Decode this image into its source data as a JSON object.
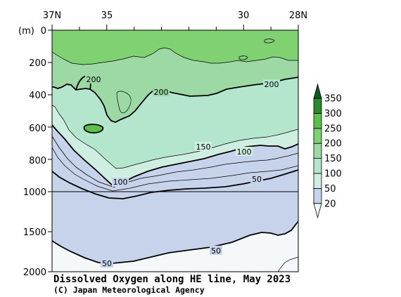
{
  "chart_data": {
    "type": "contour",
    "title": "Dissolved Oxygen along HE line, May 2023",
    "credit": "(C) Japan Meteorological Agency",
    "depth_unit": "(m)",
    "x_ticks": [
      "37N",
      "35",
      "30",
      "28N"
    ],
    "x_tick_values": [
      37,
      35,
      30,
      28
    ],
    "xlim": [
      37,
      28
    ],
    "y_ticks_upper": [
      "0",
      "200",
      "400",
      "600",
      "800",
      "1000"
    ],
    "y_tick_values_upper": [
      0,
      200,
      400,
      600,
      800,
      1000
    ],
    "y_ticks_lower": [
      "1500",
      "2000"
    ],
    "y_tick_values_lower": [
      1500,
      2000
    ],
    "ylim": [
      0,
      2000
    ],
    "scale_break_depth": 1000,
    "colorbar": {
      "labels": [
        "20",
        "50",
        "100",
        "150",
        "200",
        "250",
        "300",
        "350"
      ],
      "levels": [
        20,
        50,
        100,
        150,
        200,
        250,
        300,
        350
      ],
      "colors": [
        "#f4f8f8",
        "#c6d3ea",
        "#cdeee0",
        "#b4e6ce",
        "#9dd9a4",
        "#7fd171",
        "#5cc04a",
        "#2b8a2b",
        "#0f5a20"
      ]
    },
    "contour_labels": [
      {
        "text": "200",
        "lat": 35.95,
        "depth": 290
      },
      {
        "text": "200",
        "lat": 34.45,
        "depth": 350
      },
      {
        "text": "200",
        "lat": 28.95,
        "depth": 320
      },
      {
        "text": "150",
        "lat": 31.9,
        "depth": 700
      },
      {
        "text": "100",
        "lat": 31.0,
        "depth": 730
      },
      {
        "text": "100",
        "lat": 35.0,
        "depth": 950
      },
      {
        "text": "50",
        "lat": 30.0,
        "depth": 900
      },
      {
        "text": "50",
        "lat": 31.8,
        "depth": 1750
      },
      {
        "text": "50",
        "lat": 35.0,
        "depth": 1955
      }
    ]
  }
}
